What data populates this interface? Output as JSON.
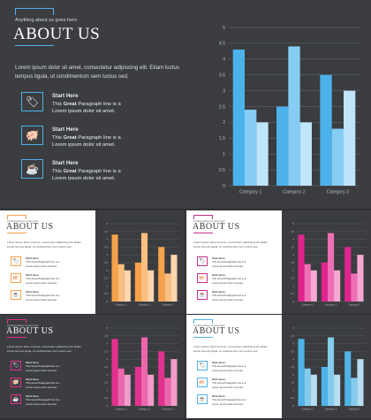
{
  "main": {
    "tag": "Anything about us goes here",
    "title": "ABOUT US",
    "lorem": "Lorem ipsum dolor sit amet, consectetur adipiscing elit. Etiam luctus tempus ligula, ut condimentum sem luctus sed.",
    "features": [
      {
        "icon": "tag-icon",
        "glyph": "🏷",
        "heading": "Start Here",
        "line1_pre": "This ",
        "line1_bold": "Great",
        "line1_post": " Paragraph line is a",
        "line2": "Lorem ipsum dolor sit amet."
      },
      {
        "icon": "piggy-bank-icon",
        "glyph": "🐖",
        "heading": "Start Here",
        "line1_pre": "This ",
        "line1_bold": "Great",
        "line1_post": " Paragraph line is a",
        "line2": "Lorem ipsum dolor sit amet."
      },
      {
        "icon": "coffee-cup-icon",
        "glyph": "☕",
        "heading": "Start Here",
        "line1_pre": "This ",
        "line1_bold": "Great",
        "line1_post": " Paragraph line is a",
        "line2": "Lorem ipsum dolor sit amet."
      }
    ]
  },
  "thumb_text": {
    "tag": "Anything about us goes here",
    "title": "ABOUT US",
    "lorem": "Lorem ipsum dolor sit amet, consectetur adipiscing elit. Etiam luctus tempus ligula, ut condimentum sem luctus sed.",
    "heading": "Start Here",
    "line1": "This Great Paragraph line is a",
    "line2": "Lorem ipsum dolor sit amet."
  },
  "colors": {
    "blue": [
      "#4db2ea",
      "#86cdf4",
      "#bfe5fa"
    ],
    "orange": [
      "#f7a24a",
      "#fbbf7f",
      "#fdd6ad"
    ],
    "magenta": [
      "#e0248f",
      "#ef6fb6",
      "#f6a8d3"
    ],
    "pink": [
      "#e2318f",
      "#ec66ad",
      "#f39cc9"
    ],
    "skyblue": [
      "#4fb3e7",
      "#84cbee",
      "#b7def3"
    ]
  },
  "chart_data": [
    {
      "name": "main",
      "type": "bar",
      "categories": [
        "Category 1",
        "Category 2",
        "Category 3"
      ],
      "series": [
        {
          "values": [
            4.3,
            2.5,
            3.5
          ]
        },
        {
          "values": [
            2.4,
            4.4,
            1.8
          ]
        },
        {
          "values": [
            2.0,
            2.0,
            3.0
          ]
        }
      ],
      "ylim": [
        0,
        5
      ],
      "yticks": [
        "0",
        "0.5",
        "1",
        "1.5",
        "2",
        "2.5",
        "3",
        "3.5",
        "4",
        "4.5",
        "5"
      ],
      "grid": true
    }
  ]
}
